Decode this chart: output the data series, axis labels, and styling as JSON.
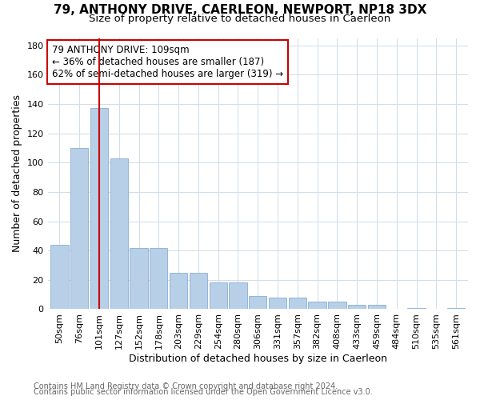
{
  "title": "79, ANTHONY DRIVE, CAERLEON, NEWPORT, NP18 3DX",
  "subtitle": "Size of property relative to detached houses in Caerleon",
  "xlabel": "Distribution of detached houses by size in Caerleon",
  "ylabel": "Number of detached properties",
  "annotation_line1": "79 ANTHONY DRIVE: 109sqm",
  "annotation_line2": "← 36% of detached houses are smaller (187)",
  "annotation_line3": "62% of semi-detached houses are larger (319) →",
  "footer_line1": "Contains HM Land Registry data © Crown copyright and database right 2024.",
  "footer_line2": "Contains public sector information licensed under the Open Government Licence v3.0.",
  "categories": [
    "50sqm",
    "76sqm",
    "101sqm",
    "127sqm",
    "152sqm",
    "178sqm",
    "203sqm",
    "229sqm",
    "254sqm",
    "280sqm",
    "306sqm",
    "331sqm",
    "357sqm",
    "382sqm",
    "408sqm",
    "433sqm",
    "459sqm",
    "484sqm",
    "510sqm",
    "535sqm",
    "561sqm"
  ],
  "values": [
    44,
    110,
    137,
    103,
    42,
    42,
    25,
    25,
    18,
    18,
    9,
    8,
    8,
    5,
    5,
    3,
    3,
    0,
    1,
    0,
    1
  ],
  "bar_color": "#b8cfe8",
  "bar_edge_color": "#8aadd4",
  "vline_color": "#cc0000",
  "vline_x": 2,
  "annotation_box_edge": "#cc0000",
  "annotation_box_face": "#ffffff",
  "ylim": [
    0,
    185
  ],
  "yticks": [
    0,
    20,
    40,
    60,
    80,
    100,
    120,
    140,
    160,
    180
  ],
  "bg_color": "#ffffff",
  "grid_color": "#d0dcea",
  "title_fontsize": 11,
  "subtitle_fontsize": 9.5,
  "axis_label_fontsize": 9,
  "tick_fontsize": 8,
  "annotation_fontsize": 8.5,
  "footer_fontsize": 7
}
